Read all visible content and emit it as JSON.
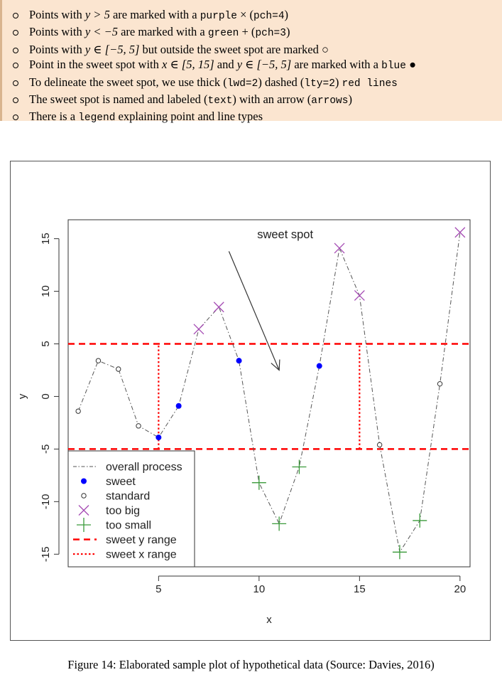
{
  "notes": [
    {
      "parts": [
        "Points with ",
        {
          "m": "y > 5"
        },
        " are marked with a ",
        {
          "c": "purple"
        },
        " × (",
        {
          "c": "pch=4"
        },
        ")"
      ]
    },
    {
      "parts": [
        "Points with ",
        {
          "m": "y < −5"
        },
        " are marked with a ",
        {
          "c": "green"
        },
        " + (",
        {
          "c": "pch=3"
        },
        ")"
      ]
    },
    {
      "parts": [
        "Points with ",
        {
          "m": "y ∈ [−5, 5]"
        },
        " but outside the sweet spot are marked ○"
      ]
    },
    {
      "parts": [
        "Point in the sweet spot with ",
        {
          "m": "x ∈ [5, 15]"
        },
        " and ",
        {
          "m": "y ∈ [−5, 5]"
        },
        " are marked with a ",
        {
          "c": "blue"
        },
        " ●"
      ]
    },
    {
      "parts": [
        "To delineate the sweet spot, we use thick (",
        {
          "c": "lwd=2"
        },
        ") dashed (",
        {
          "c": "lty=2"
        },
        ") ",
        {
          "c": "red lines"
        }
      ]
    },
    {
      "parts": [
        "The sweet spot is named and labeled (",
        {
          "c": "text"
        },
        ") with an arrow (",
        {
          "c": "arrows"
        },
        ")"
      ]
    },
    {
      "parts": [
        "There is a ",
        {
          "c": "legend"
        },
        " explaining point and line types"
      ]
    }
  ],
  "caption": "Figure 14: Elaborated sample plot of hypothetical data (Source: Davies, 2016)",
  "chart_data": {
    "type": "line",
    "xlabel": "x",
    "ylabel": "y",
    "xlim": [
      0.5,
      20.5
    ],
    "ylim": [
      -16.2,
      16.8
    ],
    "xticks": [
      5,
      10,
      15,
      20
    ],
    "yticks": [
      -15,
      -10,
      -5,
      0,
      5,
      10,
      15
    ],
    "grid": false,
    "x": [
      1,
      2,
      3,
      4,
      5,
      6,
      7,
      8,
      9,
      10,
      11,
      12,
      13,
      14,
      15,
      16,
      17,
      18,
      19,
      20
    ],
    "y": [
      -1.4,
      3.4,
      2.6,
      -2.8,
      -3.9,
      -0.9,
      6.4,
      8.5,
      3.4,
      -8.2,
      -12.1,
      -6.7,
      2.9,
      14.1,
      9.6,
      -4.6,
      -14.8,
      -11.8,
      1.2,
      15.6
    ],
    "sweet_spot": {
      "x": [
        5,
        15
      ],
      "y": [
        -5,
        5
      ]
    },
    "annotation": {
      "text": "sweet spot",
      "text_at": [
        11.3,
        15.3
      ],
      "arrow_from": [
        8.5,
        13.8
      ],
      "arrow_to": [
        11,
        2.5
      ]
    },
    "colors": {
      "sweet": "#0000ff",
      "too_big": "#a54bb4",
      "too_small": "#3a9a3a",
      "range": "#ff0000",
      "process": "#555555"
    },
    "legend": {
      "position": "bottom-left",
      "entries": [
        {
          "label": "overall process",
          "symbol": "dashdot-line"
        },
        {
          "label": "sweet",
          "symbol": "filled-circle"
        },
        {
          "label": "standard",
          "symbol": "open-circle"
        },
        {
          "label": "too big",
          "symbol": "cross"
        },
        {
          "label": "too small",
          "symbol": "plus"
        },
        {
          "label": "sweet y range",
          "symbol": "dashed-line"
        },
        {
          "label": "sweet x range",
          "symbol": "dotted-line"
        }
      ]
    }
  }
}
